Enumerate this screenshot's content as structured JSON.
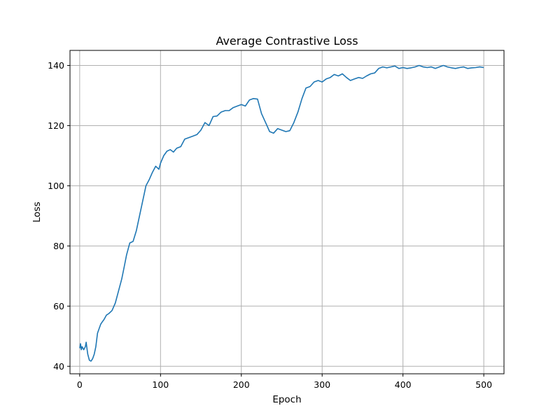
{
  "chart_data": {
    "type": "line",
    "title": "Average Contrastive Loss",
    "xlabel": "Epoch",
    "ylabel": "Loss",
    "xlim": [
      -12,
      525
    ],
    "ylim": [
      37.5,
      145
    ],
    "xticks": [
      0,
      100,
      200,
      300,
      400,
      500
    ],
    "yticks": [
      40,
      60,
      80,
      100,
      120,
      140
    ],
    "grid": true,
    "line_color": "#1f77b4",
    "series": [
      {
        "x": [
          0,
          1,
          2,
          3,
          5,
          7,
          8,
          9,
          10,
          12,
          14,
          16,
          18,
          20,
          22,
          24,
          26,
          28,
          30,
          33,
          36,
          40,
          44,
          48,
          52,
          55,
          58,
          62,
          66,
          70,
          74,
          78,
          82,
          86,
          90,
          94,
          98,
          100,
          104,
          108,
          112,
          116,
          120,
          125,
          130,
          135,
          140,
          145,
          150,
          155,
          160,
          165,
          170,
          175,
          180,
          185,
          190,
          195,
          200,
          205,
          210,
          215,
          220,
          225,
          230,
          235,
          240,
          245,
          250,
          255,
          260,
          265,
          270,
          275,
          280,
          285,
          290,
          295,
          300,
          305,
          310,
          315,
          320,
          325,
          330,
          335,
          340,
          345,
          350,
          355,
          360,
          365,
          370,
          375,
          380,
          385,
          390,
          395,
          400,
          405,
          410,
          415,
          420,
          425,
          430,
          435,
          440,
          445,
          450,
          455,
          460,
          465,
          470,
          475,
          480,
          485,
          490,
          495,
          500
        ],
        "y": [
          46,
          47.5,
          45.5,
          46.5,
          45.5,
          46.5,
          48,
          46,
          44,
          42,
          41.7,
          42.5,
          44,
          46.5,
          51,
          52.5,
          54,
          54.8,
          55.5,
          57,
          57.5,
          58.5,
          61,
          65,
          69,
          73,
          77,
          81,
          81.5,
          85,
          90,
          95,
          100,
          102,
          104.5,
          106.5,
          105.5,
          107.5,
          110,
          111.5,
          112,
          111.2,
          112.5,
          113,
          115.5,
          116,
          116.5,
          117,
          118.5,
          121,
          120,
          123,
          123.2,
          124.5,
          125,
          125,
          126,
          126.5,
          127,
          126.5,
          128.5,
          129,
          128.8,
          124,
          121,
          118,
          117.5,
          119,
          118.5,
          118,
          118.3,
          121,
          124.5,
          129,
          132.5,
          133,
          134.5,
          135,
          134.5,
          135.5,
          136,
          137,
          136.5,
          137.2,
          136,
          135,
          135.5,
          136,
          135.7,
          136.5,
          137.2,
          137.5,
          139,
          139.5,
          139.2,
          139.5,
          139.8,
          139,
          139.3,
          139,
          139.2,
          139.5,
          140,
          139.5,
          139.3,
          139.5,
          139,
          139.5,
          140,
          139.5,
          139.2,
          139,
          139.3,
          139.5,
          139,
          139.2,
          139.3,
          139.5,
          139.3
        ],
        "__note": ""
      }
    ]
  }
}
